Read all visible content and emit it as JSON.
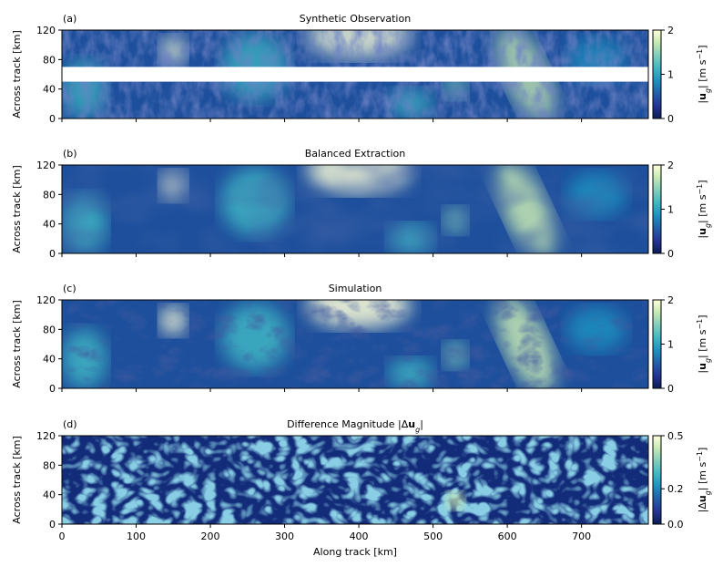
{
  "figure": {
    "xlabel": "Along track [km]",
    "colormap": [
      "#081d58",
      "#253494",
      "#225ea8",
      "#1d91c0",
      "#41b6c4",
      "#7fcdbb",
      "#c7e9b4",
      "#ffffd9"
    ]
  },
  "chart_data": [
    {
      "type": "heatmap",
      "panel_label": "(a)",
      "title": "Synthetic Observation",
      "ylabel": "Across track [km]",
      "xlim": [
        0,
        790
      ],
      "ylim": [
        0,
        120
      ],
      "yticks": [
        "0",
        "40",
        "80",
        "120"
      ],
      "xticks": [],
      "colorbar": {
        "label": "|u_g| [m s^-1]",
        "range": [
          0,
          2
        ],
        "ticks": [
          "0",
          "1",
          "2"
        ]
      },
      "nadir_gap_y": [
        50,
        70
      ]
    },
    {
      "type": "heatmap",
      "panel_label": "(b)",
      "title": "Balanced Extraction",
      "ylabel": "Across track [km]",
      "xlim": [
        0,
        790
      ],
      "ylim": [
        0,
        120
      ],
      "yticks": [
        "0",
        "40",
        "80",
        "120"
      ],
      "xticks": [],
      "colorbar": {
        "label": "|u_g| [m s^-1]",
        "range": [
          0,
          2
        ],
        "ticks": [
          "0",
          "1",
          "2"
        ]
      }
    },
    {
      "type": "heatmap",
      "panel_label": "(c)",
      "title": "Simulation",
      "ylabel": "Across track [km]",
      "xlim": [
        0,
        790
      ],
      "ylim": [
        0,
        120
      ],
      "yticks": [
        "0",
        "40",
        "80",
        "120"
      ],
      "xticks": [],
      "colorbar": {
        "label": "|u_g| [m s^-1]",
        "range": [
          0,
          2
        ],
        "ticks": [
          "0",
          "1",
          "2"
        ]
      }
    },
    {
      "type": "heatmap",
      "panel_label": "(d)",
      "title": "Difference Magnitude |Δu_g|",
      "ylabel": "Across track [km]",
      "xlabel": "Along track [km]",
      "xlim": [
        0,
        790
      ],
      "ylim": [
        0,
        120
      ],
      "yticks": [
        "0",
        "40",
        "80",
        "120"
      ],
      "xticks": [
        "0",
        "100",
        "200",
        "300",
        "400",
        "500",
        "600",
        "700"
      ],
      "colorbar": {
        "label": "|Δu_g| [m s^-1]",
        "range": [
          0,
          0.5
        ],
        "ticks": [
          "0.0",
          "0.2",
          "0.5"
        ]
      }
    }
  ]
}
